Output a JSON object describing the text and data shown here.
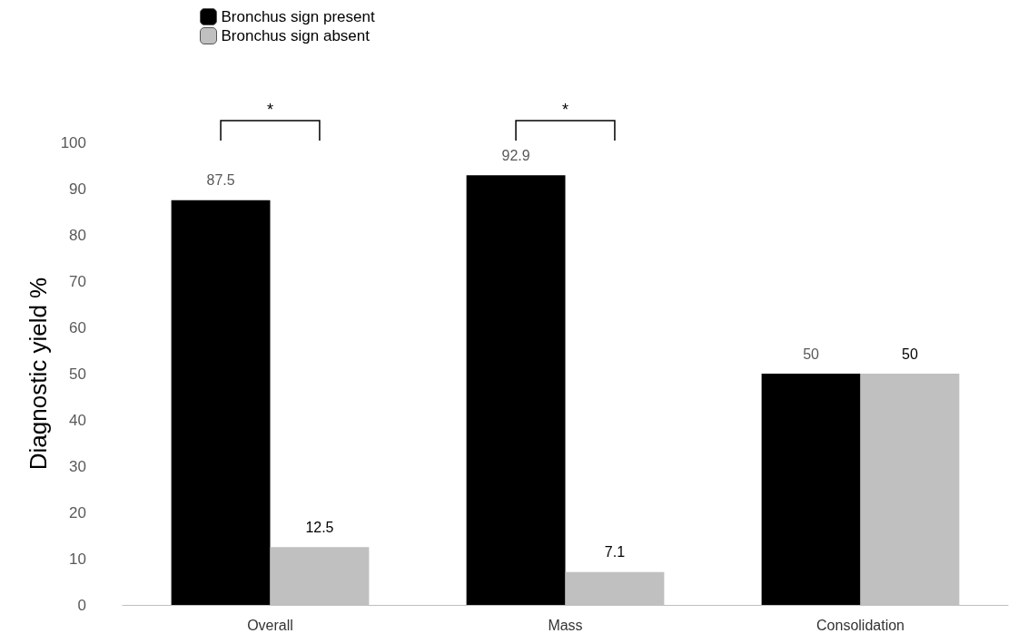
{
  "chart_data": {
    "type": "bar",
    "ylabel": "Diagnostic yield %",
    "categories": [
      "Overall",
      "Mass",
      "Consolidation"
    ],
    "series": [
      {
        "name": "Bronchus sign present",
        "color": "#000000",
        "values": [
          87.5,
          92.9,
          50
        ]
      },
      {
        "name": "Bronchus sign absent",
        "color": "#c0c0c0",
        "values": [
          12.5,
          7.1,
          50
        ]
      }
    ],
    "ylim": [
      0,
      100
    ],
    "yticks": [
      0,
      10,
      20,
      30,
      40,
      50,
      60,
      70,
      80,
      90,
      100
    ],
    "grid": false,
    "legend": "top left",
    "data_labels": true,
    "annotations": [
      "*",
      "*"
    ]
  }
}
